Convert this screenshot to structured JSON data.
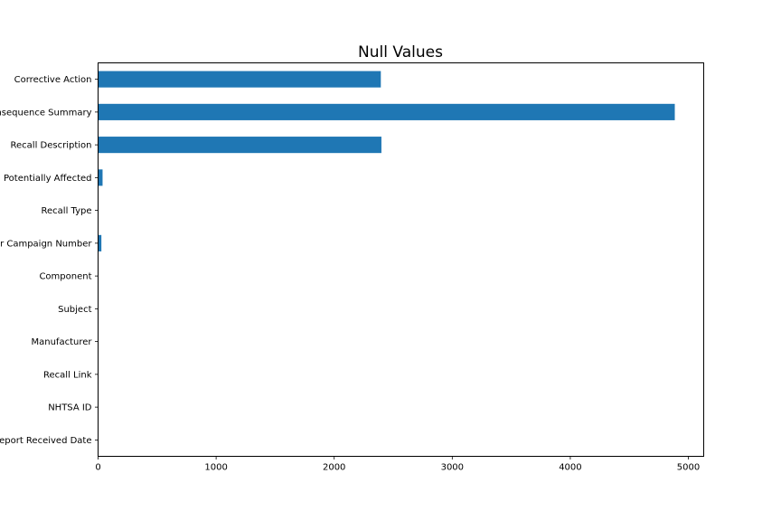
{
  "chart_data": {
    "type": "bar",
    "orientation": "horizontal",
    "title": "Null Values",
    "xlabel": "",
    "ylabel": "",
    "categories": [
      "Corrective Action",
      "Consequence Summary",
      "Recall Description",
      "Potentially Affected",
      "Recall Type",
      "Manufacturer Campaign Number",
      "Component",
      "Subject",
      "Manufacturer",
      "Recall Link",
      "NHTSA ID",
      "Report Received Date"
    ],
    "values": [
      2395,
      4885,
      2400,
      38,
      0,
      28,
      0,
      0,
      0,
      0,
      0,
      0
    ],
    "xlim": [
      0,
      5130
    ],
    "xticks": [
      0,
      1000,
      2000,
      3000,
      4000,
      5000
    ],
    "bar_color": "#1f77b4",
    "grid": false,
    "legend": "none"
  }
}
